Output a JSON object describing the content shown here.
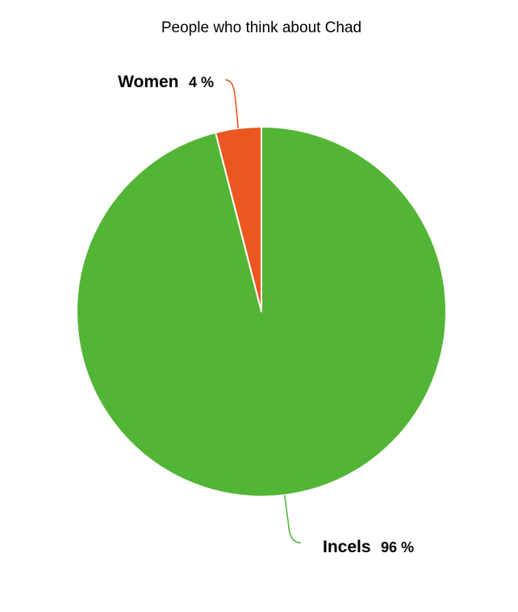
{
  "chart_data": {
    "type": "pie",
    "title": "People who think about Chad",
    "slices": [
      {
        "label": "Women",
        "value": 4,
        "value_label": "4 %",
        "color": "#ec5621"
      },
      {
        "label": "Incels",
        "value": 96,
        "value_label": "96 %",
        "color": "#52b535"
      }
    ],
    "start": "12 o'clock, counterclockwise",
    "slice_border_color": "#ffffff",
    "legend": "none"
  }
}
